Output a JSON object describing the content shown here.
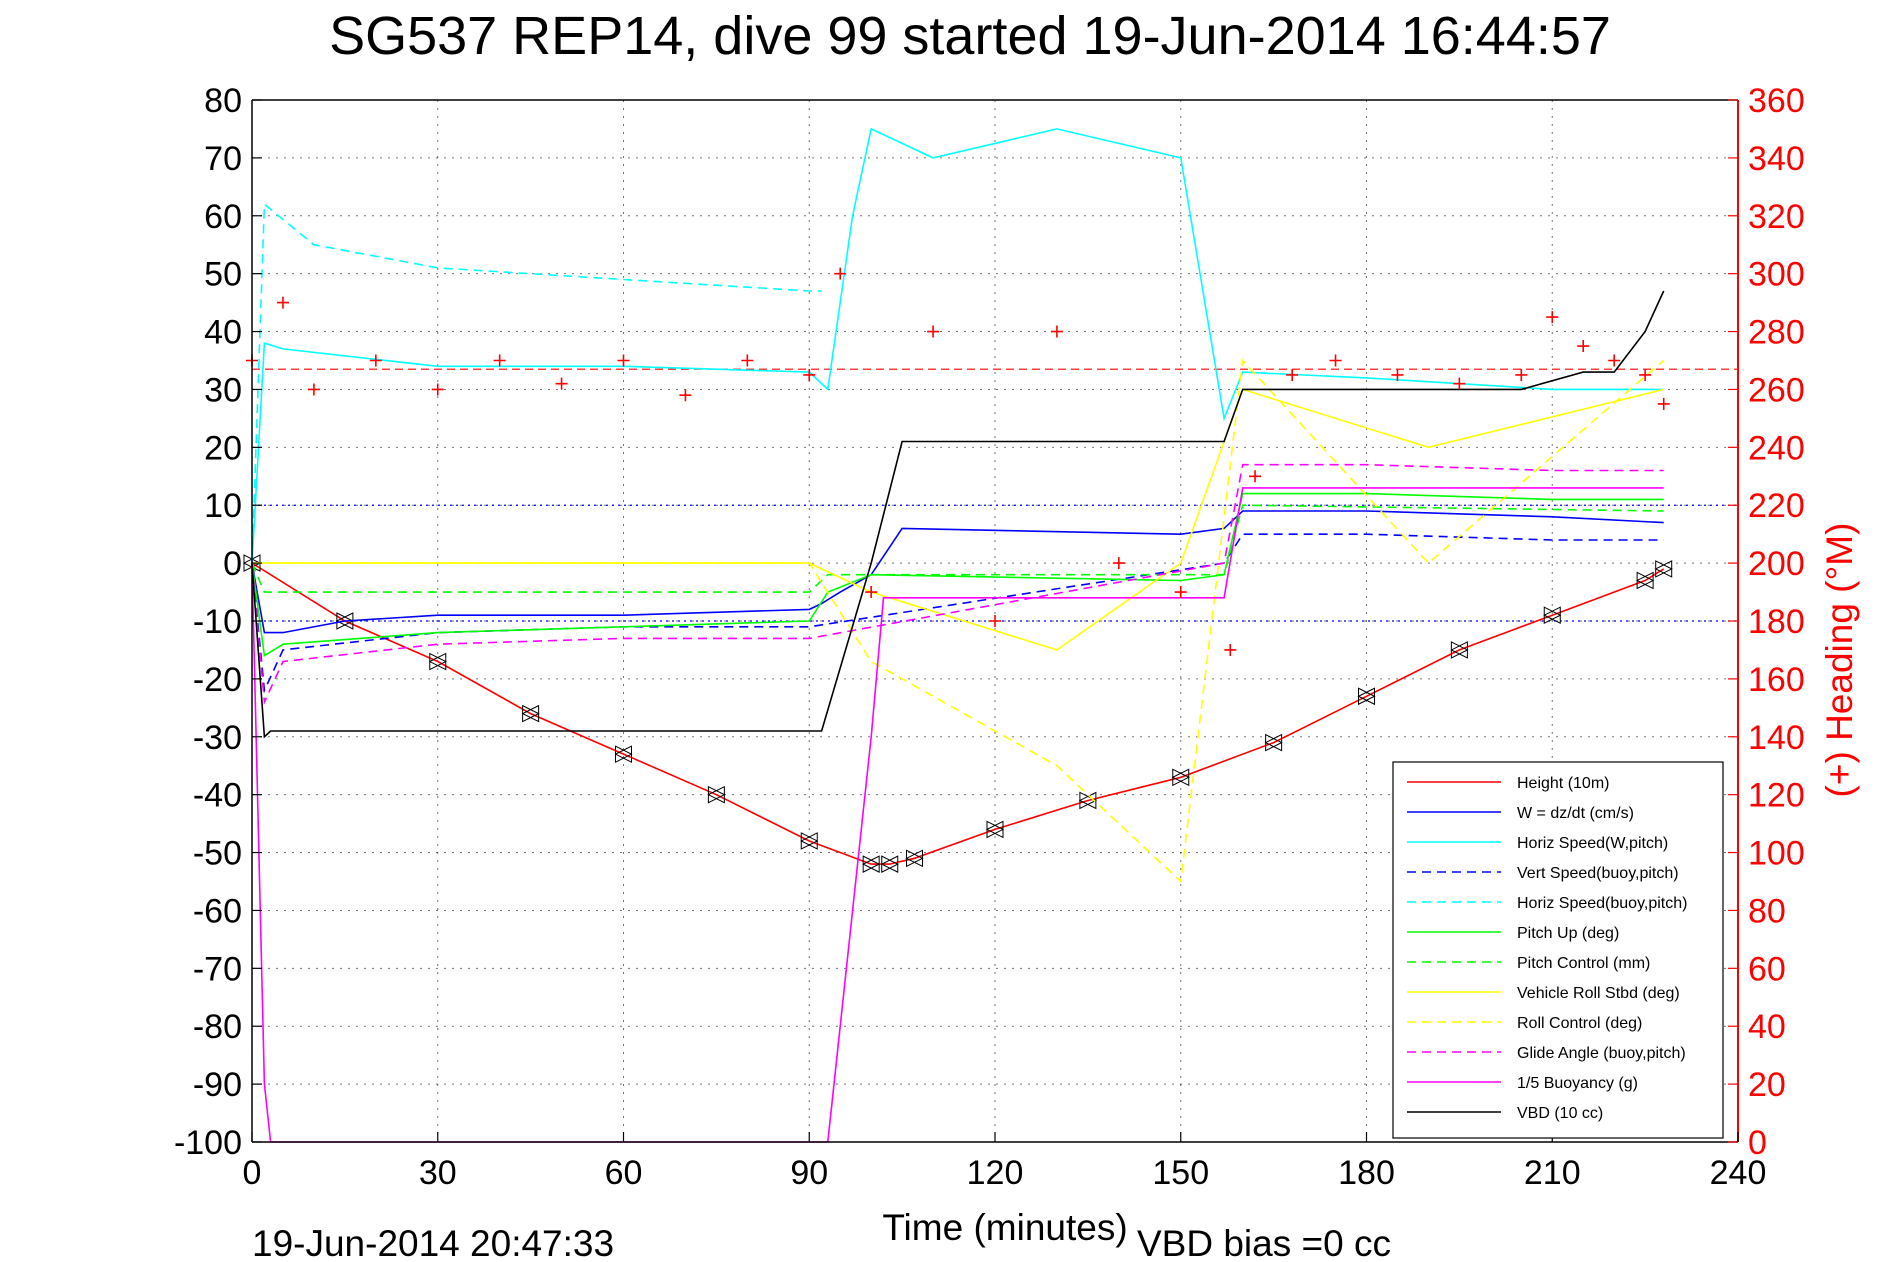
{
  "page": {
    "title": "SG537 REP14, dive 99 started 19-Jun-2014 16:44:57",
    "footer_left": "19-Jun-2014 20:47:33",
    "footer_right": "VBD bias =0 cc"
  },
  "chart_data": {
    "type": "line",
    "title": "SG537 REP14, dive 99 started 19-Jun-2014 16:44:57",
    "xlabel": "Time (minutes)",
    "ylabel": "",
    "y2label": "(+) Heading (°M)",
    "xlim": [
      0,
      240
    ],
    "ylim": [
      -100,
      80
    ],
    "y2lim": [
      0,
      360
    ],
    "x_ticks": [
      "0",
      "30",
      "60",
      "90",
      "120",
      "150",
      "180",
      "210",
      "240"
    ],
    "y_ticks": [
      "80",
      "70",
      "60",
      "50",
      "40",
      "30",
      "20",
      "10",
      "0",
      "-10",
      "-20",
      "-30",
      "-40",
      "-50",
      "-60",
      "-70",
      "-80",
      "-90",
      "-100"
    ],
    "y2_ticks": [
      "360",
      "340",
      "320",
      "300",
      "280",
      "260",
      "240",
      "220",
      "200",
      "180",
      "160",
      "140",
      "120",
      "100",
      "80",
      "60",
      "40",
      "20",
      "0"
    ],
    "grid": true,
    "legend_position": "bottom-right",
    "series": [
      {
        "name": "Height (10m)",
        "color": "#ff0000",
        "style": "solid",
        "x": [
          0,
          15,
          30,
          45,
          60,
          75,
          90,
          100,
          103,
          107,
          120,
          135,
          150,
          165,
          180,
          195,
          210,
          225,
          228
        ],
        "values": [
          0,
          -10,
          -17,
          -26,
          -33,
          -40,
          -48,
          -52,
          -52,
          -51,
          -46,
          -41,
          -37,
          -31,
          -23,
          -15,
          -9,
          -3,
          -1
        ]
      },
      {
        "name": "W = dz/dt (cm/s)",
        "color": "#0000ff",
        "style": "solid",
        "x": [
          0,
          2,
          5,
          15,
          30,
          60,
          90,
          92,
          95,
          100,
          105,
          150,
          157,
          160,
          180,
          210,
          228
        ],
        "values": [
          0,
          -12,
          -12,
          -10,
          -9,
          -9,
          -8,
          -7,
          -5,
          -2,
          6,
          5,
          6,
          9,
          9,
          8,
          7
        ]
      },
      {
        "name": "Horiz Speed(W,pitch)",
        "color": "#00ffff",
        "style": "solid",
        "x": [
          0,
          2,
          5,
          30,
          60,
          90,
          93,
          97,
          100,
          110,
          130,
          150,
          157,
          160,
          180,
          210,
          228
        ],
        "values": [
          0,
          38,
          37,
          34,
          34,
          33,
          30,
          60,
          75,
          70,
          75,
          70,
          25,
          33,
          32,
          30,
          30
        ]
      },
      {
        "name": "Vert Speed(buoy,pitch)",
        "color": "#0000ff",
        "style": "dashed",
        "x": [
          0,
          2,
          5,
          30,
          60,
          90,
          157,
          160,
          180,
          210,
          228
        ],
        "values": [
          0,
          -22,
          -15,
          -12,
          -11,
          -11,
          0,
          5,
          5,
          4,
          4
        ]
      },
      {
        "name": "Horiz Speed(buoy,pitch)",
        "color": "#00ffff",
        "style": "dashed",
        "x": [
          0,
          2,
          10,
          30,
          60,
          90,
          92
        ],
        "values": [
          0,
          62,
          55,
          51,
          49,
          47,
          47
        ]
      },
      {
        "name": "Pitch Up (deg)",
        "color": "#00ff00",
        "style": "solid",
        "x": [
          0,
          2,
          5,
          30,
          60,
          90,
          93,
          100,
          150,
          157,
          160,
          180,
          210,
          228
        ],
        "values": [
          0,
          -16,
          -14,
          -12,
          -11,
          -10,
          -5,
          -2,
          -3,
          -2,
          12,
          12,
          11,
          11
        ]
      },
      {
        "name": "Pitch Control (mm)",
        "color": "#00ff00",
        "style": "dashed",
        "x": [
          0,
          2,
          90,
          93,
          157,
          160,
          228
        ],
        "values": [
          0,
          -5,
          -5,
          -2,
          -2,
          10,
          9
        ]
      },
      {
        "name": "Vehicle Roll Stbd (deg)",
        "color": "#ffff00",
        "style": "solid",
        "x": [
          0,
          5,
          30,
          60,
          90,
          100,
          130,
          150,
          160,
          190,
          228
        ],
        "values": [
          0,
          0,
          0,
          0,
          0,
          -5,
          -15,
          0,
          30,
          20,
          30
        ]
      },
      {
        "name": "Roll Control (deg)",
        "color": "#ffff00",
        "style": "dashed",
        "x": [
          0,
          5,
          30,
          60,
          90,
          100,
          130,
          150,
          160,
          190,
          228
        ],
        "values": [
          0,
          0,
          0,
          0,
          0,
          -17,
          -35,
          -55,
          35,
          0,
          35
        ]
      },
      {
        "name": "Glide Angle (buoy,pitch)",
        "color": "#ff00ff",
        "style": "dashed",
        "x": [
          0,
          2,
          5,
          30,
          60,
          90,
          157,
          160,
          180,
          210,
          228
        ],
        "values": [
          0,
          -24,
          -17,
          -14,
          -13,
          -13,
          0,
          17,
          17,
          16,
          16
        ]
      },
      {
        "name": "1/5 Buoyancy (g)",
        "color": "#ff00ff",
        "style": "solid",
        "x": [
          0,
          2,
          3,
          93,
          100,
          102,
          157,
          160,
          180,
          210,
          228
        ],
        "values": [
          0,
          -90,
          -100,
          -100,
          -30,
          -6,
          -6,
          13,
          13,
          13,
          13
        ]
      },
      {
        "name": "VBD (10 cc)",
        "color": "#000000",
        "style": "solid",
        "x": [
          0,
          2,
          3,
          92,
          100,
          105,
          157,
          160,
          205,
          215,
          220,
          225,
          228
        ],
        "values": [
          0,
          -30,
          -29,
          -29,
          0,
          21,
          21,
          30,
          30,
          33,
          33,
          40,
          47
        ]
      },
      {
        "name": "(+) Heading",
        "color": "#ff0000",
        "style": "markers",
        "axis": "right",
        "x": [
          0,
          5,
          10,
          20,
          30,
          40,
          50,
          60,
          70,
          80,
          90,
          95,
          100,
          110,
          120,
          130,
          140,
          150,
          158,
          162,
          168,
          175,
          185,
          195,
          205,
          210,
          215,
          220,
          225,
          228
        ],
        "values": [
          270,
          290,
          260,
          270,
          260,
          270,
          262,
          270,
          258,
          270,
          265,
          300,
          190,
          280,
          180,
          280,
          200,
          190,
          170,
          230,
          265,
          270,
          265,
          262,
          265,
          285,
          275,
          270,
          265,
          255
        ]
      }
    ],
    "reference_lines": [
      {
        "color": "#ff0000",
        "style": "dashed",
        "axis": "right",
        "value": 267
      },
      {
        "color": "#0000ff",
        "style": "dotted",
        "axis": "left",
        "value": 10
      },
      {
        "color": "#0000ff",
        "style": "dotted",
        "axis": "left",
        "value": -10
      }
    ]
  }
}
